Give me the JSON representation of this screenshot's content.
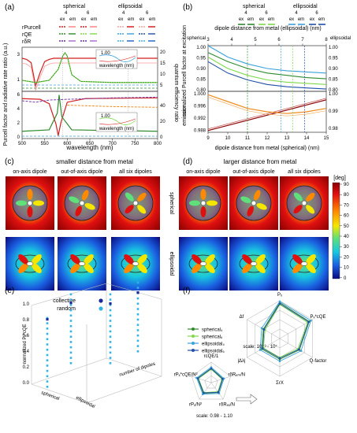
{
  "panels": {
    "a": {
      "letter": "(a)",
      "legend_top": {
        "spherical": "spherical",
        "ellipsoidal": "ellipsoidal",
        "n4": "4",
        "n6": "6",
        "ex": "ex",
        "em": "em"
      },
      "legend_rows": [
        "rPurcell",
        "rQE",
        "rδR"
      ],
      "ylabel_left": "Purcell factor and radiative rate ratio (a.u.)",
      "ylabel_right": "quantum efficiency ratio",
      "xlabel": "wavelength (nm)",
      "xticks": [
        "500",
        "550",
        "600",
        "650",
        "700",
        "750",
        "800"
      ],
      "top_left_ticks": [
        "1",
        "3"
      ],
      "top_right_ticks": [
        "5",
        "10",
        "15",
        "20"
      ],
      "bottom_left_ticks": [
        "0",
        "2",
        "4",
        "6"
      ],
      "bottom_right_ticks": [
        "0",
        "20",
        "40"
      ],
      "inset_labels": [
        "1.00",
        "0.98",
        "0.96",
        "wavelength (nm)",
        "500",
        "600"
      ]
    },
    "b": {
      "letter": "(b)",
      "legend_top": {
        "spherical": "spherical",
        "ellipsoidal": "ellipsoidal",
        "n4": "4",
        "n6": "6",
        "ex": "ex",
        "em": "em"
      },
      "top_axis_title": "dipole distance from metal (ellipsoidal) (nm)",
      "bottom_axis_title": "dipole distance from metal (spherical) (nm)",
      "left_tag": "spherical",
      "right_tag": "ellipsoidal",
      "ylabel_upper": "normalized Purcell factor at excitation",
      "ylabel_lower": "emission",
      "top_ticks": [
        "3",
        "4",
        "5",
        "6",
        "7",
        "8"
      ],
      "bottom_ticks": [
        "9",
        "10",
        "11",
        "12",
        "13",
        "14",
        "15"
      ],
      "left_upper_ticks": [
        "1.00",
        "0.95",
        "0.90",
        "0.85",
        "0.80"
      ],
      "left_lower_ticks": [
        "1.000",
        "0.996",
        "0.992",
        "0.988"
      ],
      "right_upper_ticks": [
        "1.00",
        "0.95",
        "0.90",
        "0.85",
        "0.80"
      ],
      "right_lower_ticks": [
        "1.00",
        "0.99",
        "0.98"
      ]
    },
    "c": {
      "letter": "(c)",
      "title": "smaller distance from metal",
      "columns": [
        "on-axis dipole",
        "out-of-axis dipole",
        "all six dipoles"
      ],
      "rows": [
        "spherical",
        "ellipsoidal"
      ]
    },
    "d": {
      "letter": "(d)",
      "title": "larger distance from metal",
      "columns": [
        "on-axis dipole",
        "out-of-axis dipole",
        "all six dipoles"
      ],
      "colorbar_unit": "[deg]",
      "colorbar_ticks": [
        "90",
        "80",
        "70",
        "60",
        "50",
        "40",
        "30",
        "20",
        "10",
        "0"
      ]
    },
    "e": {
      "letter": "(e)",
      "legend": [
        "collective",
        "random"
      ],
      "zlabel": "normalized Pₓ*cQE",
      "z_ticks": [
        "0.0",
        "0.2",
        "0.4",
        "0.6",
        "0.8",
        "1.0"
      ],
      "axis_a_label": "spherical",
      "axis_b_label": "ellipsoidal",
      "axis_c_label": "number of dipoles"
    },
    "f": {
      "letter": "(f)",
      "legend": [
        "spherical₄",
        "spherical₆",
        "ellipsoidal₄",
        "ellipsoidal₆"
      ],
      "big_axes": [
        "Pₓ",
        "Pₓ*cQE",
        "Q-factor",
        "ΣrX",
        "|Δλ|",
        "Δf"
      ],
      "big_scale": "scale: 10⁻³ - 10⁷",
      "small_axes": [
        "rcQE/1",
        "rδRₑₘ/N",
        "rδRₑₓ/N",
        "rPₓ/N²",
        "rPₓ*cQE/N²"
      ],
      "small_scale": "scale: 0.98 - 1.10"
    }
  },
  "colors": {
    "sph4": "#2e8b2e",
    "sph6": "#7fd94a",
    "ell4": "#3aa0dc",
    "ell6": "#1f4fa8",
    "purcell_red": "#d21f1f",
    "qe_orange": "#f08a1c",
    "dr_purple": "#7a3fa8"
  },
  "chart_data": [
    {
      "type": "line",
      "title": "",
      "xlabel": "wavelength (nm)",
      "ylabel": "Purcell factor and radiative rate ratio (a.u.)",
      "xlim": [
        500,
        800
      ],
      "series": [
        {
          "name": "rPurcell",
          "x": [
            500,
            510,
            520,
            530,
            540,
            550,
            560,
            570,
            580,
            590,
            600,
            620,
            650,
            700,
            750,
            800
          ],
          "values": [
            3.5,
            3.4,
            3.1,
            1.0,
            2.2,
            3.2,
            3.4,
            3.5,
            3.5,
            3.5,
            3.5,
            3.5,
            3.5,
            3.5,
            3.5,
            3.5
          ]
        },
        {
          "name": "rQE",
          "x": [
            500,
            530,
            560,
            580,
            590,
            595,
            600,
            610,
            630,
            700,
            800
          ],
          "values": [
            1.5,
            1.3,
            1.5,
            2.5,
            3.7,
            4.0,
            3.7,
            2.0,
            1.4,
            1.3,
            1.3
          ]
        }
      ]
    },
    {
      "type": "line",
      "xlabel": "dipole distance from metal (spherical) (nm)",
      "ylabel": "normalized Purcell factor at excitation",
      "xlim": [
        9,
        15
      ],
      "ylim": [
        0.8,
        1.0
      ],
      "series": [
        {
          "x": [
            9,
            10,
            11,
            12,
            13,
            14,
            15
          ],
          "values": [
            0.97,
            0.93,
            0.9,
            0.88,
            0.87,
            0.86,
            0.855
          ]
        },
        {
          "x": [
            9,
            10,
            11,
            12,
            13,
            14,
            15
          ],
          "values": [
            1.0,
            0.95,
            0.92,
            0.9,
            0.89,
            0.885,
            0.88
          ]
        },
        {
          "x": [
            9,
            10,
            11,
            12,
            13,
            14,
            15
          ],
          "values": [
            0.95,
            0.9,
            0.87,
            0.85,
            0.84,
            0.835,
            0.83
          ]
        },
        {
          "x": [
            9,
            10,
            11,
            12,
            13,
            14,
            15
          ],
          "values": [
            0.93,
            0.88,
            0.85,
            0.83,
            0.82,
            0.815,
            0.81
          ]
        }
      ]
    },
    {
      "type": "line",
      "xlabel": "dipole distance from metal (spherical) (nm)",
      "ylabel": "emission",
      "xlim": [
        9,
        15
      ],
      "ylim": [
        0.988,
        1.0
      ],
      "series": [
        {
          "x": [
            9,
            10,
            11,
            12,
            13,
            14,
            15
          ],
          "values": [
            0.9885,
            0.99,
            0.9915,
            0.993,
            0.9945,
            0.996,
            0.9975
          ]
        },
        {
          "x": [
            9,
            10,
            11,
            12,
            13,
            14,
            15
          ],
          "values": [
            0.999,
            0.997,
            0.995,
            0.994,
            0.9935,
            0.994,
            0.995
          ]
        }
      ]
    },
    {
      "type": "scatter",
      "title": "",
      "zlabel": "normalized Pₓ*cQE",
      "series": [
        {
          "name": "collective",
          "values": [
            1.0,
            0.97,
            0.99,
            1.0
          ]
        },
        {
          "name": "random",
          "values": [
            0.9,
            0.8,
            0.7,
            0.6,
            0.5,
            0.4,
            0.3,
            0.2,
            0.1,
            0.05
          ]
        }
      ]
    }
  ]
}
